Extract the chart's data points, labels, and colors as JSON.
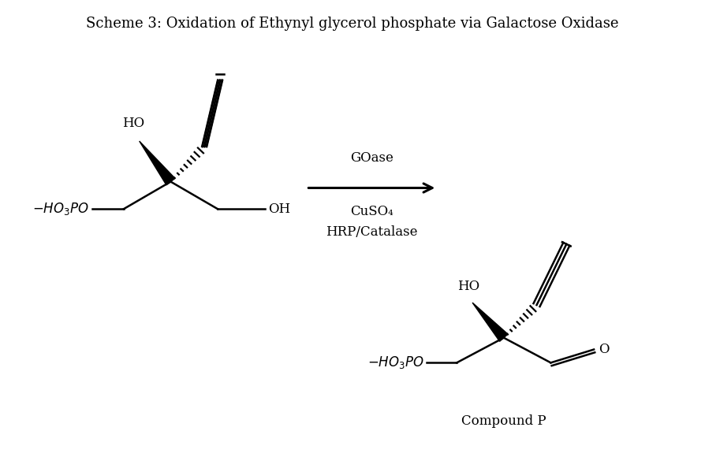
{
  "title": "Scheme 3: Oxidation of Ethynyl glycerol phosphate via Galactose Oxidase",
  "title_fontsize": 13,
  "background_color": "#ffffff",
  "text_color": "#000000",
  "line_color": "#000000",
  "reagents_line1": "GOase",
  "reagents_line2": "CuSO₄",
  "reagents_line3": "HRP/Catalase",
  "compound_label": "Compound P"
}
